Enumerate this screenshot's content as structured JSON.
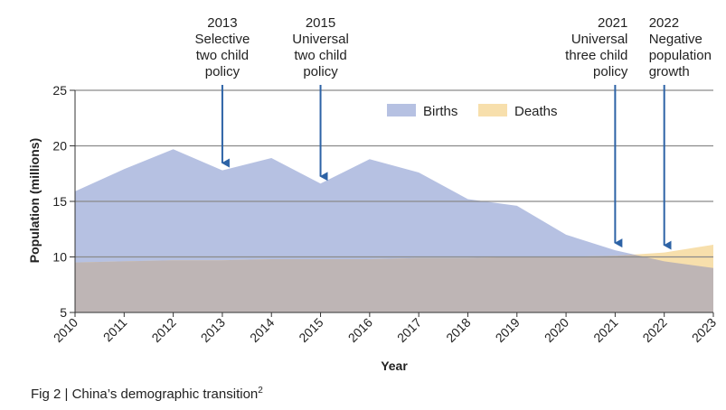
{
  "caption": {
    "text": "Fig 2 | China’s demographic transition",
    "footnote": "2"
  },
  "colors": {
    "births": "#b6c1e2",
    "deaths": "#f7dfac",
    "overlap": "#beb5b5",
    "arrow": "#2d63a6",
    "grid": "#8a8a8a"
  },
  "chart_data": {
    "type": "area",
    "title": "",
    "xlabel": "Year",
    "ylabel": "Population (millions)",
    "x": [
      2010,
      2011,
      2012,
      2013,
      2014,
      2015,
      2016,
      2017,
      2018,
      2019,
      2020,
      2021,
      2022,
      2023
    ],
    "ylim": [
      5,
      25
    ],
    "yticks": [
      5,
      10,
      15,
      20,
      25
    ],
    "grid": true,
    "legend_position": "top-center",
    "series": [
      {
        "name": "Births",
        "values": [
          15.9,
          17.9,
          19.7,
          17.8,
          18.9,
          16.6,
          18.8,
          17.6,
          15.2,
          14.6,
          12.0,
          10.6,
          9.6,
          9.0
        ]
      },
      {
        "name": "Deaths",
        "values": [
          9.5,
          9.6,
          9.7,
          9.7,
          9.8,
          9.8,
          9.8,
          9.9,
          9.9,
          10.0,
          10.0,
          10.1,
          10.4,
          11.1
        ]
      }
    ],
    "annotations": [
      {
        "year": "2013",
        "lines": [
          "Selective",
          "two child",
          "policy"
        ],
        "x": 2013,
        "arrow_to": 17.8
      },
      {
        "year": "2015",
        "lines": [
          "Universal",
          "two child",
          "policy"
        ],
        "x": 2015,
        "arrow_to": 16.6
      },
      {
        "year": "2021",
        "lines": [
          "Universal",
          "three child",
          "policy"
        ],
        "x": 2021,
        "arrow_to": 10.6
      },
      {
        "year": "2022",
        "lines": [
          "Negative",
          "population",
          "growth"
        ],
        "x": 2022,
        "arrow_to": 10.4
      }
    ]
  }
}
